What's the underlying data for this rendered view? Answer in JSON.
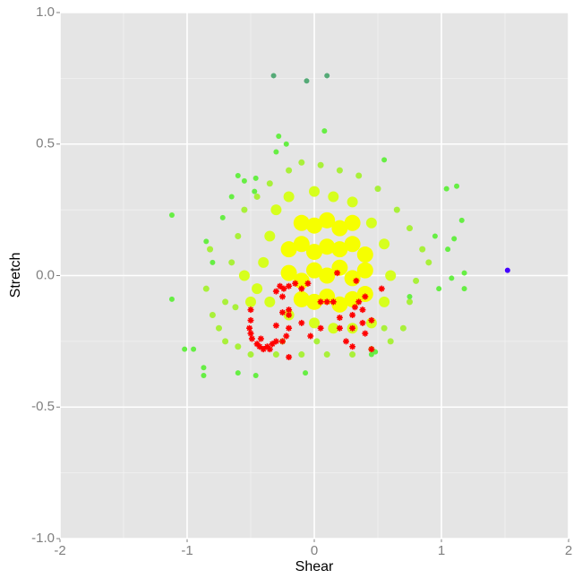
{
  "chart_data": {
    "type": "scatter",
    "x_label": "Shear",
    "y_label": "Stretch",
    "xlim": [
      -2,
      2
    ],
    "ylim": [
      -1,
      1
    ],
    "xticks": [
      -2,
      -1,
      0,
      1,
      2
    ],
    "yticks": [
      {
        "value": -1,
        "label": "-1.0"
      },
      {
        "value": -0.5,
        "label": "-0.5"
      },
      {
        "value": 0,
        "label": "0.0"
      },
      {
        "value": 0.5,
        "label": "0.5"
      },
      {
        "value": 1,
        "label": "1.0"
      }
    ],
    "x_minor_grid": [
      -1.5,
      -0.5,
      0.5,
      1.5
    ],
    "y_minor_grid": [
      -0.75,
      -0.25,
      0.25,
      0.75
    ],
    "grid": true,
    "series": [
      {
        "color": "#f6ff00",
        "marker": "circle",
        "size": 9,
        "x": [
          -0.2,
          -0.1,
          0,
          0.1,
          0.2,
          0.3,
          0.4,
          -0.2,
          -0.1,
          0,
          0.1,
          0.2,
          0.3,
          0.4,
          -0.1,
          0,
          0.1,
          0.2,
          0.3,
          -0.1,
          0,
          0.1,
          0.2,
          0.3,
          0.4
        ],
        "values": [
          0.01,
          -0.02,
          0.02,
          0,
          0.03,
          -0.01,
          0.02,
          0.1,
          0.12,
          0.09,
          0.11,
          0.1,
          0.12,
          0.08,
          0.2,
          0.19,
          0.21,
          0.18,
          0.2,
          -0.09,
          -0.1,
          -0.08,
          -0.11,
          -0.09,
          -0.07
        ]
      },
      {
        "color": "#d6ff1e",
        "marker": "circle",
        "size": 6,
        "x": [
          -0.4,
          -0.45,
          -0.35,
          -0.3,
          -0.2,
          0,
          0.15,
          0.3,
          0.45,
          0.55,
          0.6,
          0.55,
          0.45,
          0.3,
          0.15,
          0,
          -0.2,
          -0.35,
          -0.5,
          -0.55
        ],
        "values": [
          0.05,
          -0.05,
          0.15,
          0.25,
          0.3,
          0.32,
          0.3,
          0.28,
          0.2,
          0.12,
          0,
          -0.1,
          -0.18,
          -0.2,
          -0.2,
          -0.18,
          -0.15,
          -0.1,
          -0.1,
          0
        ]
      },
      {
        "color": "#a9f03a",
        "marker": "circle",
        "size": 3.5,
        "x": [
          -0.7,
          -0.75,
          -0.8,
          -0.65,
          -0.6,
          -0.55,
          -0.45,
          -0.35,
          -0.2,
          -0.1,
          0.05,
          0.2,
          0.35,
          0.5,
          0.65,
          0.75,
          0.85,
          0.8,
          0.75,
          0.7,
          0.6,
          0.45,
          0.3,
          0.1,
          -0.1,
          -0.3,
          -0.5,
          -0.6,
          -0.7,
          -0.85,
          -0.82,
          0.9,
          -0.25,
          0.55,
          -0.62,
          0.02
        ],
        "values": [
          -0.1,
          -0.2,
          -0.15,
          0.05,
          0.15,
          0.25,
          0.3,
          0.35,
          0.4,
          0.43,
          0.42,
          0.4,
          0.38,
          0.33,
          0.25,
          0.18,
          0.1,
          -0.02,
          -0.1,
          -0.2,
          -0.25,
          -0.28,
          -0.3,
          -0.3,
          -0.3,
          -0.3,
          -0.3,
          -0.27,
          -0.25,
          -0.05,
          0.1,
          0.05,
          -0.25,
          -0.2,
          -0.12,
          -0.25
        ]
      },
      {
        "color": "#66ee44",
        "marker": "circle",
        "size": 3,
        "x": [
          -1.12,
          -1.12,
          -1.02,
          -0.87,
          -0.87,
          -0.6,
          -0.46,
          -0.07,
          0.45,
          0.48,
          0.75,
          1.05,
          1.1,
          1.08,
          1.18,
          1.18,
          1.12,
          1.04,
          1.16,
          -0.6,
          -0.55,
          -0.47,
          -0.46,
          -0.28,
          -0.3,
          -0.22,
          0.08,
          0.55,
          -0.65,
          -0.72,
          -0.85,
          -0.8,
          0.95,
          0.98,
          -0.95
        ],
        "values": [
          0.23,
          -0.09,
          -0.28,
          -0.35,
          -0.38,
          -0.37,
          -0.38,
          -0.37,
          -0.3,
          -0.29,
          -0.08,
          0.1,
          0.14,
          -0.01,
          0.01,
          -0.05,
          0.34,
          0.33,
          0.21,
          0.38,
          0.36,
          0.32,
          0.37,
          0.53,
          0.47,
          0.5,
          0.55,
          0.44,
          0.3,
          0.22,
          0.13,
          0.05,
          0.15,
          -0.05,
          -0.28
        ]
      },
      {
        "color": "#55aa77",
        "marker": "circle",
        "size": 3,
        "x": [
          -0.32,
          -0.06,
          0.1
        ],
        "values": [
          0.76,
          0.74,
          0.76
        ]
      },
      {
        "color": "#4400ff",
        "marker": "circle",
        "size": 3,
        "x": [
          1.52
        ],
        "values": [
          0.02
        ]
      },
      {
        "color": "#ff0000",
        "marker": "star",
        "size": 3.5,
        "x": [
          -0.5,
          -0.5,
          -0.51,
          -0.5,
          -0.49,
          -0.45,
          -0.43,
          -0.4,
          -0.37,
          -0.35,
          -0.33,
          -0.42,
          -0.3,
          -0.25,
          -0.22,
          -0.2,
          -0.2,
          -0.2,
          -0.25,
          -0.3,
          -0.2,
          -0.25,
          -0.3,
          -0.27,
          -0.24,
          -0.2,
          -0.15,
          -0.1,
          -0.05,
          -0.1,
          -0.03,
          0.05,
          0.05,
          0.1,
          0.15,
          0.18,
          0.2,
          0.2,
          0.25,
          0.3,
          0.3,
          0.3,
          0.32,
          0.35,
          0.38,
          0.4,
          0.4,
          0.45,
          0.33,
          0.53,
          0.45,
          0.38
        ],
        "values": [
          -0.13,
          -0.17,
          -0.2,
          -0.22,
          -0.24,
          -0.26,
          -0.27,
          -0.28,
          -0.27,
          -0.28,
          -0.26,
          -0.24,
          -0.25,
          -0.25,
          -0.23,
          -0.31,
          -0.2,
          -0.15,
          -0.14,
          -0.19,
          -0.13,
          -0.08,
          -0.06,
          -0.04,
          -0.05,
          -0.04,
          -0.03,
          -0.05,
          -0.03,
          -0.18,
          -0.23,
          -0.1,
          -0.2,
          -0.1,
          -0.1,
          0.01,
          -0.16,
          -0.2,
          -0.25,
          -0.15,
          -0.2,
          -0.27,
          -0.12,
          -0.1,
          -0.13,
          -0.08,
          -0.22,
          -0.17,
          -0.02,
          -0.05,
          -0.28,
          -0.18
        ]
      }
    ]
  }
}
